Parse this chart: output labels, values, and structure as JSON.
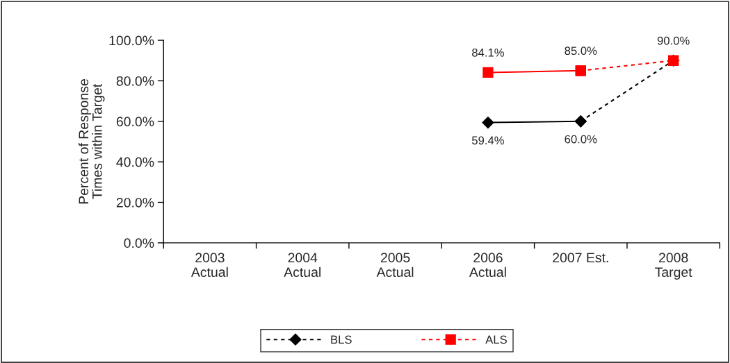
{
  "chart_data": {
    "type": "line",
    "ylabel": "Percent of Response\nTimes within Target",
    "categories": [
      "2003\nActual",
      "2004\nActual",
      "2005\nActual",
      "2006\nActual",
      "2007 Est.",
      "2008\nTarget"
    ],
    "ylim": [
      0,
      100
    ],
    "yticks": [
      {
        "value": 0,
        "label": "0.0%"
      },
      {
        "value": 20,
        "label": "20.0%"
      },
      {
        "value": 40,
        "label": "40.0%"
      },
      {
        "value": 60,
        "label": "60.0%"
      },
      {
        "value": 80,
        "label": "80.0%"
      },
      {
        "value": 100,
        "label": "100.0%"
      }
    ],
    "grid": false,
    "legend": "bottom",
    "series": [
      {
        "color": "#000000",
        "marker": "diamond",
        "line_style": "solid",
        "values": [
          null,
          null,
          null,
          59.4,
          60.0,
          null
        ],
        "value_labels": [
          null,
          null,
          null,
          "59.4%",
          "60.0%",
          null
        ]
      },
      {
        "color": "#ff0000",
        "marker": "square",
        "line_style": "solid",
        "values": [
          null,
          null,
          null,
          84.1,
          85.0,
          null
        ],
        "value_labels": [
          null,
          null,
          null,
          "84.1%",
          "85.0%",
          null
        ]
      },
      {
        "name": "BLS",
        "color": "#000000",
        "marker": "diamond",
        "line_style": "dashed",
        "values": [
          null,
          null,
          null,
          null,
          60.0,
          90.0
        ]
      },
      {
        "name": "ALS",
        "color": "#ff0000",
        "marker": "square",
        "line_style": "dashed",
        "values": [
          null,
          null,
          null,
          null,
          85.0,
          90.0
        ],
        "value_labels": [
          null,
          null,
          null,
          null,
          null,
          "90.0%"
        ]
      }
    ]
  }
}
